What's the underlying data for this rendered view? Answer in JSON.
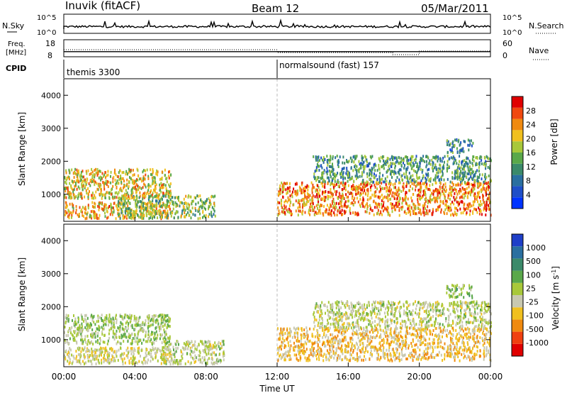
{
  "header": {
    "station": "Inuvik (fitACF)",
    "beam": "Beam 12",
    "date": "05/Mar/2011"
  },
  "nsky_panel": {
    "left_label": "N.Sky",
    "right_label": "N.Search",
    "left_ticks": [
      "10^5",
      "10^0"
    ],
    "right_ticks": [
      "10^5",
      "10^0"
    ]
  },
  "freq_panel": {
    "left_label_1": "Freq.",
    "left_label_2": "[MHz]",
    "right_label": "Nave",
    "left_ticks": [
      "18",
      "8"
    ],
    "right_ticks": [
      "60",
      "0"
    ],
    "freq_mhz_value": 11,
    "nave_value": 25
  },
  "cpid": {
    "label": "CPID",
    "segments": [
      {
        "name": "themis 3300",
        "start_hour": 0
      },
      {
        "name": "normalsound (fast) 157",
        "start_hour": 12
      }
    ]
  },
  "colors": {
    "power": [
      "#0033ff",
      "#1f4fc8",
      "#2a6fa0",
      "#3b8a6a",
      "#5aa84a",
      "#a8c83a",
      "#f0c020",
      "#f08a10",
      "#f04810",
      "#e00000"
    ],
    "velocity": [
      "#e00000",
      "#f04010",
      "#f08a10",
      "#f0c020",
      "#c8c8b0",
      "#a8c83a",
      "#5aa84a",
      "#3b8a6a",
      "#2a6fa0",
      "#1f3fc8"
    ]
  },
  "chart_data": [
    {
      "type": "heatmap",
      "title": "",
      "xlabel": "",
      "ylabel": "Slant Range [km]",
      "xlim": [
        0,
        24
      ],
      "ylim": [
        180,
        4500
      ],
      "x_ticks": [
        "00:00",
        "04:00",
        "08:00",
        "12:00",
        "16:00",
        "20:00",
        "00:00"
      ],
      "y_ticks": [
        1000,
        2000,
        3000,
        4000
      ],
      "colorbar": {
        "label": "Power [dB]",
        "range": [
          0,
          32
        ],
        "ticks": [
          4,
          8,
          12,
          16,
          20,
          24,
          28
        ]
      },
      "echo_regions": [
        {
          "t_start": 0.0,
          "t_end": 6.0,
          "r_low": 300,
          "r_high": 800,
          "power_db": 22
        },
        {
          "t_start": 0.0,
          "t_end": 6.0,
          "r_low": 900,
          "r_high": 1800,
          "power_db": 20
        },
        {
          "t_start": 3.0,
          "t_end": 8.5,
          "r_low": 300,
          "r_high": 1000,
          "power_db": 16
        },
        {
          "t_start": 12.0,
          "t_end": 24.0,
          "r_low": 400,
          "r_high": 1400,
          "power_db": 24
        },
        {
          "t_start": 14.0,
          "t_end": 24.0,
          "r_low": 1400,
          "r_high": 2200,
          "power_db": 12
        },
        {
          "t_start": 21.5,
          "t_end": 23.0,
          "r_low": 2300,
          "r_high": 2700,
          "power_db": 10
        }
      ]
    },
    {
      "type": "heatmap",
      "title": "",
      "xlabel": "Time UT",
      "ylabel": "Slant Range [km]",
      "xlim": [
        0,
        24
      ],
      "ylim": [
        180,
        4500
      ],
      "x_ticks": [
        "00:00",
        "04:00",
        "08:00",
        "12:00",
        "16:00",
        "20:00",
        "00:00"
      ],
      "y_ticks": [
        1000,
        2000,
        3000,
        4000
      ],
      "colorbar": {
        "label": "Velocity [m s^-1]",
        "ticks": [
          "1000",
          "500",
          "100",
          "25",
          "-25",
          "-100",
          "-500",
          "-1000"
        ]
      },
      "echo_regions": [
        {
          "t_start": 0.0,
          "t_end": 6.0,
          "r_low": 300,
          "r_high": 800,
          "velocity": -100
        },
        {
          "t_start": 0.0,
          "t_end": 6.0,
          "r_low": 900,
          "r_high": 1800,
          "velocity": 100
        },
        {
          "t_start": 5.5,
          "t_end": 9.0,
          "r_low": 300,
          "r_high": 1000,
          "velocity": 0
        },
        {
          "t_start": 12.0,
          "t_end": 24.0,
          "r_low": 400,
          "r_high": 1400,
          "velocity": -300
        },
        {
          "t_start": 14.0,
          "t_end": 24.0,
          "r_low": 1400,
          "r_high": 2200,
          "velocity": 0
        },
        {
          "t_start": 21.5,
          "t_end": 23.0,
          "r_low": 2300,
          "r_high": 2700,
          "velocity": 200
        }
      ]
    }
  ]
}
